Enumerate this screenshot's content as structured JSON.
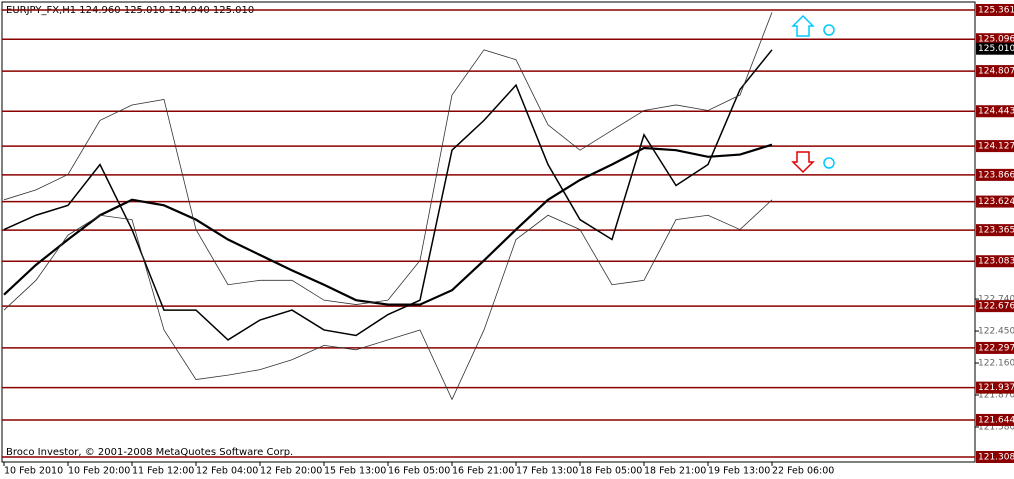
{
  "chart_data": {
    "type": "line",
    "title": "EURJPY_FX,H1  124.960 125.010 124.940 125.010",
    "footer": "Broco Investor, © 2001-2008 MetaQuotes Software Corp.",
    "categories": [
      "10 Feb 2010",
      null,
      "10 Feb 20:00",
      null,
      "11 Feb 12:00",
      null,
      "12 Feb 04:00",
      null,
      "12 Feb 20:00",
      null,
      "15 Feb 13:00",
      null,
      "16 Feb 05:00",
      null,
      "16 Feb 21:00",
      null,
      "17 Feb 13:00",
      null,
      "18 Feb 05:00",
      null,
      "18 Feb 21:00",
      null,
      "19 Feb 13:00",
      null,
      "22 Feb 06:00"
    ],
    "series": [
      {
        "color": "#000000",
        "width": 1.5,
        "values": [
          123.37,
          123.5,
          123.59,
          123.96,
          123.37,
          122.64,
          122.64,
          122.37,
          122.55,
          122.64,
          122.46,
          122.41,
          122.6,
          122.73,
          124.09,
          124.36,
          124.68,
          123.96,
          123.46,
          123.28,
          124.23,
          123.77,
          123.96,
          124.64,
          125.0
        ]
      },
      {
        "color": "#000000",
        "width": 2.2,
        "values": [
          122.78,
          123.05,
          123.28,
          123.5,
          123.64,
          123.59,
          123.46,
          123.28,
          123.14,
          123.0,
          122.87,
          122.73,
          122.69,
          122.69,
          122.82,
          123.09,
          123.37,
          123.64,
          123.82,
          123.96,
          124.11,
          124.09,
          124.03,
          124.05,
          124.14
        ]
      },
      {
        "color": "#333333",
        "width": 0.8,
        "values": [
          123.64,
          123.73,
          123.87,
          124.36,
          124.5,
          124.55,
          123.37,
          122.87,
          122.91,
          122.91,
          122.73,
          122.69,
          122.73,
          123.09,
          124.59,
          125.0,
          124.91,
          124.32,
          124.09,
          124.27,
          124.45,
          124.5,
          124.45,
          124.59,
          125.34
        ]
      },
      {
        "color": "#333333",
        "width": 0.8,
        "values": [
          122.64,
          122.91,
          123.32,
          123.5,
          123.46,
          122.46,
          122.01,
          122.05,
          122.1,
          122.19,
          122.32,
          122.28,
          122.37,
          122.46,
          121.83,
          122.46,
          123.28,
          123.5,
          123.37,
          122.87,
          122.91,
          123.46,
          123.5,
          123.37,
          123.64
        ]
      }
    ],
    "levels": [
      125.361,
      125.096,
      124.807,
      124.443,
      124.127,
      123.866,
      123.624,
      123.365,
      123.083,
      122.676,
      122.297,
      121.937,
      121.644,
      121.308
    ],
    "level_color": "#8b0000",
    "current_price": {
      "value": 125.01,
      "label": "125.010"
    },
    "ylim": [
      121.308,
      125.361
    ],
    "yticks": [
      {
        "value": 122.74,
        "label": "122.740"
      },
      {
        "value": 122.45,
        "label": "122.450"
      },
      {
        "value": 122.16,
        "label": "122.160"
      },
      {
        "value": 121.87,
        "label": "121.870"
      },
      {
        "value": 121.58,
        "label": "121.580"
      }
    ]
  }
}
